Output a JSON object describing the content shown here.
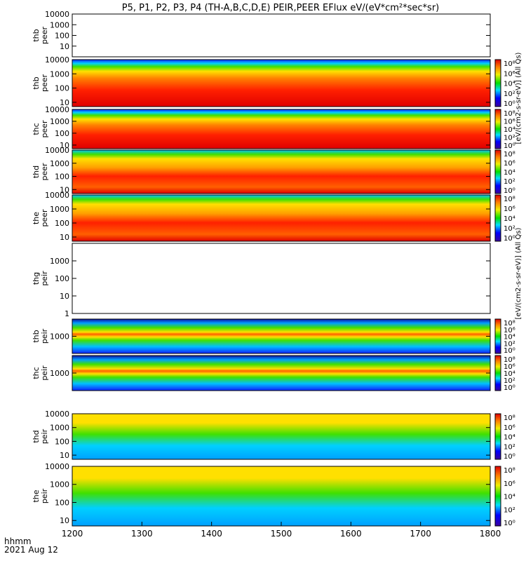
{
  "title": "P5, P1, P2, P3, P4 (TH-A,B,C,D,E) PEIR,PEER EFlux eV/(eV*cm²*sec*sr)",
  "footer": {
    "time_label": "hhmm",
    "date_label": "2021 Aug 12"
  },
  "colorbar_labels": {
    "peer": "[eV/(cm2-s-sr-eV)] (All Qs)",
    "peir": "[eV/(cm2-s-sr-eV)] (All Qs)"
  },
  "chart_data": {
    "type": "heatmap",
    "xlim": [
      1200,
      1800
    ],
    "x_ticks": [
      "1200",
      "1300",
      "1400",
      "1500",
      "1600",
      "1700",
      "1800"
    ],
    "colorbar_ticks": [
      "10⁸",
      "10⁶",
      "10⁴",
      "10²",
      "10⁰"
    ],
    "panels": [
      {
        "probe": "thb",
        "species": "peer",
        "y_ticks": [
          "10000",
          "1000",
          "100",
          "10"
        ],
        "empty": true,
        "ylim": [
          1,
          10000
        ]
      },
      {
        "probe": "thb",
        "species": "peer",
        "y_ticks": [
          "10000",
          "1000",
          "100",
          "10"
        ],
        "colorbar": true,
        "ylim": [
          5,
          10000
        ]
      },
      {
        "probe": "thc",
        "species": "peer",
        "y_ticks": [
          "10000",
          "1000",
          "100",
          "10"
        ],
        "colorbar": true,
        "ylim": [
          5,
          10000
        ]
      },
      {
        "probe": "thd",
        "species": "peer",
        "y_ticks": [
          "10000",
          "1000",
          "100",
          "10"
        ],
        "colorbar": true,
        "ylim": [
          5,
          10000
        ]
      },
      {
        "probe": "the",
        "species": "peer",
        "y_ticks": [
          "10000",
          "1000",
          "100",
          "10"
        ],
        "colorbar": true,
        "ylim": [
          5,
          10000
        ]
      },
      {
        "probe": "thg",
        "species": "peir",
        "y_ticks": [
          "1000",
          "100",
          "10",
          "1"
        ],
        "empty": true,
        "ylim": [
          1,
          10000
        ]
      },
      {
        "probe": "thb",
        "species": "peir",
        "y_ticks": [
          "1000"
        ],
        "colorbar": true,
        "ylim": [
          5,
          10000
        ]
      },
      {
        "probe": "thc",
        "species": "peir",
        "y_ticks": [
          "1000"
        ],
        "colorbar": true,
        "ylim": [
          5,
          10000
        ]
      },
      {
        "probe": "thd",
        "species": "peir",
        "y_ticks": [
          "10000",
          "1000",
          "100",
          "10"
        ],
        "colorbar": true,
        "ylim": [
          5,
          10000
        ]
      },
      {
        "probe": "the",
        "species": "peir",
        "y_ticks": [
          "10000",
          "1000",
          "100",
          "10"
        ],
        "colorbar": true,
        "ylim": [
          5,
          10000
        ]
      }
    ]
  }
}
